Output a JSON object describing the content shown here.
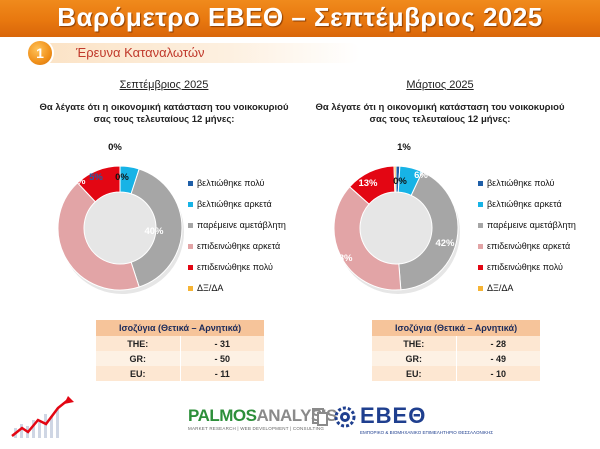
{
  "header": {
    "title": "Βαρόμετρο ΕΒΕΘ – Σεπτέμβριος 2025",
    "badge": "1",
    "subtitle": "Έρευνα Καταναλωτών"
  },
  "colors": {
    "banner": "#e8780f",
    "series": [
      "#1f5fa8",
      "#17b3e6",
      "#a6a6a6",
      "#e2a4a6",
      "#e30613",
      "#f6b434"
    ]
  },
  "legend": [
    "βελτιώθηκε πολύ",
    "βελτιώθηκε αρκετά",
    "παρέμεινε αμετάβλητη",
    "επιδεινώθηκε αρκετά",
    "επιδεινώθηκε πολύ",
    "ΔΞ/ΔΑ"
  ],
  "balance_header": "Ισοζύγια (Θετικά – Αρνητικά)",
  "chart_data": [
    {
      "type": "pie",
      "subtype": "donut",
      "title": "Σεπτέμβριος 2025",
      "question": "Θα λέγατε ότι η οικονομική κατάσταση του νοικοκυριού σας τους τελευταίους 12 μήνες:",
      "categories": [
        "βελτιώθηκε πολύ",
        "βελτιώθηκε αρκετά",
        "παρέμεινε αμετάβλητη",
        "επιδεινώθηκε αρκετά",
        "επιδεινώθηκε πολύ",
        "ΔΞ/ΔΑ"
      ],
      "values": [
        0,
        5,
        40,
        43,
        12,
        0
      ],
      "labels": [
        "0%",
        "5%",
        "40%",
        "43%",
        "12%",
        "0%"
      ],
      "balance": [
        {
          "label": "THE:",
          "value": "- 31"
        },
        {
          "label": "GR:",
          "value": "- 50"
        },
        {
          "label": "EU:",
          "value": "- 11"
        }
      ]
    },
    {
      "type": "pie",
      "subtype": "donut",
      "title": "Μάρτιος 2025",
      "question": "Θα λέγατε ότι η οικονομική κατάσταση του νοικοκυριού σας τους τελευταίους 12 μήνες:",
      "categories": [
        "βελτιώθηκε πολύ",
        "βελτιώθηκε αρκετά",
        "παρέμεινε αμετάβλητη",
        "επιδεινώθηκε αρκετά",
        "επιδεινώθηκε πολύ",
        "ΔΞ/ΔΑ"
      ],
      "values": [
        1,
        6,
        42,
        38,
        13,
        0.5
      ],
      "labels": [
        "1%",
        "6%",
        "42%",
        "38%",
        "13%",
        "0%"
      ],
      "balance": [
        {
          "label": "THE:",
          "value": "- 28"
        },
        {
          "label": "GR:",
          "value": "- 49"
        },
        {
          "label": "EU:",
          "value": "- 10"
        }
      ]
    }
  ],
  "logos": {
    "palmos_main": "PALMOS",
    "palmos_accent": "ANALYSIS",
    "palmos_tag": "MARKET RESEARCH | WEB DEVELOPMENT | CONSULTING",
    "evee": "ΕΒΕΘ",
    "evee_tag": "ΕΜΠΟΡΙΚΟ & ΒΙΟΜΗΧΑΝΙΚΟ ΕΠΙΜΕΛΗΤΗΡΙΟ ΘΕΣΣΑΛΟΝΙΚΗΣ"
  }
}
